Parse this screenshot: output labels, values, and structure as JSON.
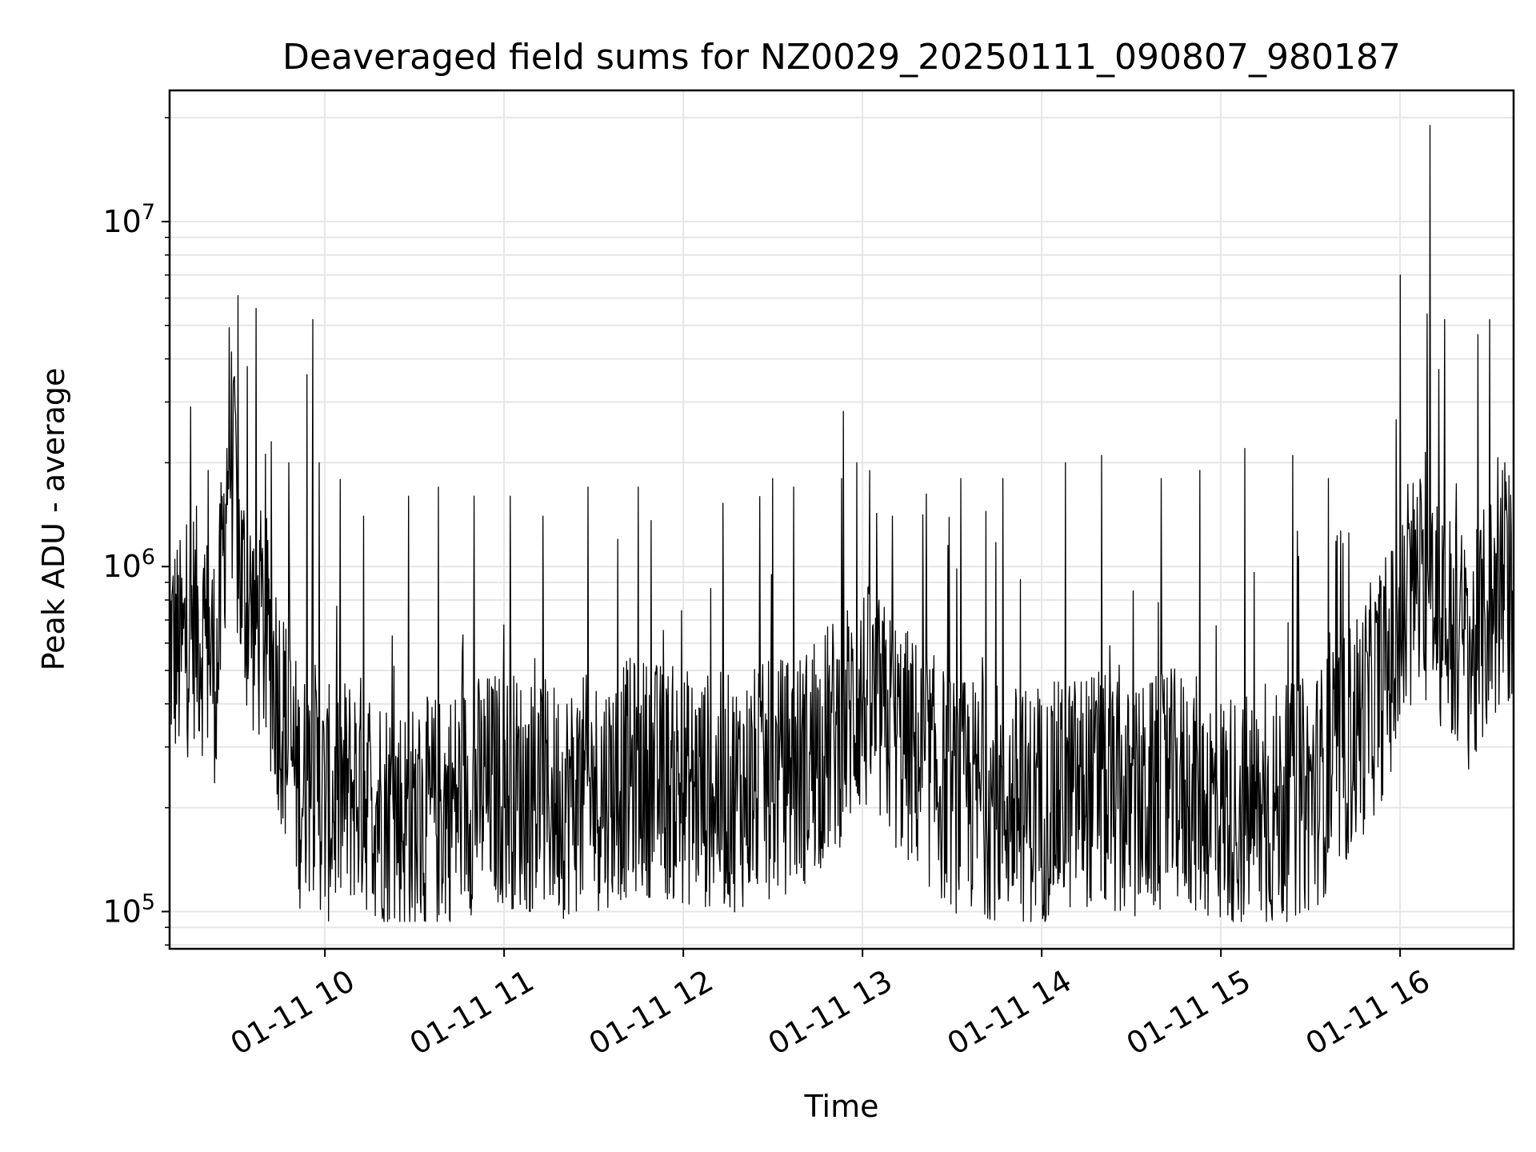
{
  "chart_data": {
    "type": "line",
    "title": "Deaveraged field sums for NZ0029_20250111_090807_980187",
    "xlabel": "Time",
    "ylabel": "Peak ADU - average",
    "x_range": [
      "2025-01-11 09:08",
      "2025-01-11 16:38"
    ],
    "x_ticks": [
      "01-11 10",
      "01-11 11",
      "01-11 12",
      "01-11 13",
      "01-11 14",
      "01-11 15",
      "01-11 16"
    ],
    "y_scale": "log",
    "ylim": [
      78000,
      24000000
    ],
    "y_ticks": [
      {
        "value": 100000,
        "base": "10",
        "exp": "5"
      },
      {
        "value": 1000000,
        "base": "10",
        "exp": "6"
      },
      {
        "value": 10000000,
        "base": "10",
        "exp": "7"
      }
    ],
    "grid": true,
    "line_color": "#000000",
    "grid_color": "#e6e6e6",
    "series": [
      {
        "x": [
          "09:08",
          "09:12",
          "09:16",
          "09:20",
          "09:24",
          "09:28",
          "09:32",
          "09:36",
          "09:40",
          "09:44",
          "09:48",
          "09:52",
          "09:56",
          "10:00",
          "10:10",
          "10:20",
          "10:30",
          "10:40",
          "10:50",
          "11:00",
          "11:15",
          "11:30",
          "11:45",
          "12:00",
          "12:15",
          "12:30",
          "12:40",
          "12:50",
          "13:00",
          "13:15",
          "13:30",
          "13:45",
          "14:00",
          "14:15",
          "14:30",
          "14:45",
          "15:00",
          "15:15",
          "15:30",
          "15:40",
          "15:50",
          "16:00",
          "16:05",
          "16:10",
          "16:15",
          "16:20",
          "16:25",
          "16:30",
          "16:38"
        ],
        "y": [
          600000,
          550000,
          700000,
          600000,
          500000,
          2500000,
          900000,
          700000,
          650000,
          450000,
          300000,
          220000,
          250000,
          200000,
          230000,
          200000,
          180000,
          200000,
          220000,
          230000,
          210000,
          220000,
          250000,
          230000,
          220000,
          240000,
          260000,
          320000,
          420000,
          300000,
          220000,
          210000,
          200000,
          230000,
          200000,
          230000,
          200000,
          190000,
          220000,
          280000,
          400000,
          600000,
          900000,
          800000,
          700000,
          600000,
          550000,
          750000,
          900000
        ]
      }
    ],
    "peaks": [
      {
        "x": "09:08",
        "y": 1700000
      },
      {
        "x": "09:21",
        "y": 1900000
      },
      {
        "x": "09:30",
        "y": 2900000
      },
      {
        "x": "09:34",
        "y": 3800000
      },
      {
        "x": "09:37",
        "y": 5600000
      },
      {
        "x": "09:42",
        "y": 2300000
      },
      {
        "x": "09:48",
        "y": 2000000
      },
      {
        "x": "09:54",
        "y": 3600000
      },
      {
        "x": "09:56",
        "y": 5200000
      },
      {
        "x": "09:58",
        "y": 2000000
      },
      {
        "x": "10:13",
        "y": 1400000
      },
      {
        "x": "10:28",
        "y": 1600000
      },
      {
        "x": "10:38",
        "y": 1700000
      },
      {
        "x": "10:50",
        "y": 1600000
      },
      {
        "x": "11:02",
        "y": 1600000
      },
      {
        "x": "11:13",
        "y": 1400000
      },
      {
        "x": "11:28",
        "y": 1700000
      },
      {
        "x": "11:38",
        "y": 1200000
      },
      {
        "x": "11:45",
        "y": 1700000
      },
      {
        "x": "12:30",
        "y": 1800000
      },
      {
        "x": "12:37",
        "y": 1700000
      },
      {
        "x": "12:53",
        "y": 1800000
      },
      {
        "x": "12:58",
        "y": 2000000
      },
      {
        "x": "13:10",
        "y": 1400000
      },
      {
        "x": "13:33",
        "y": 1800000
      },
      {
        "x": "13:47",
        "y": 1800000
      },
      {
        "x": "14:08",
        "y": 2000000
      },
      {
        "x": "14:20",
        "y": 2100000
      },
      {
        "x": "14:40",
        "y": 1800000
      },
      {
        "x": "14:53",
        "y": 1900000
      },
      {
        "x": "15:08",
        "y": 2200000
      },
      {
        "x": "15:24",
        "y": 2100000
      },
      {
        "x": "15:36",
        "y": 1800000
      },
      {
        "x": "16:00",
        "y": 7000000
      },
      {
        "x": "16:09",
        "y": 5400000
      },
      {
        "x": "16:10",
        "y": 19000000
      },
      {
        "x": "16:15",
        "y": 5200000
      },
      {
        "x": "16:30",
        "y": 5200000
      },
      {
        "x": "16:35",
        "y": 2000000
      }
    ]
  }
}
